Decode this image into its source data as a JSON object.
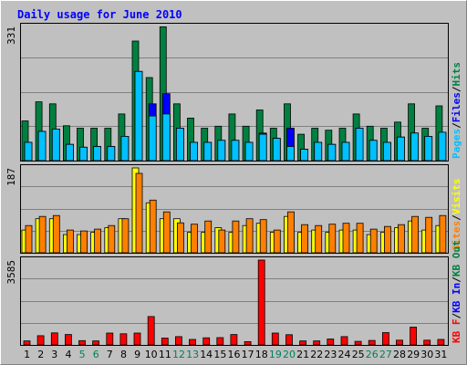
{
  "chart_data": {
    "type": "bar",
    "title": "Daily usage for June 2010",
    "days": [
      "1",
      "2",
      "3",
      "4",
      "5",
      "6",
      "7",
      "8",
      "9",
      "10",
      "11",
      "12",
      "13",
      "14",
      "15",
      "16",
      "17",
      "18",
      "19",
      "20",
      "21",
      "22",
      "23",
      "24",
      "25",
      "26",
      "27",
      "28",
      "29",
      "30",
      "31"
    ],
    "weekend_days": [
      "5",
      "6",
      "12",
      "13",
      "19",
      "20",
      "26",
      "27"
    ],
    "panels": [
      {
        "name": "hits-files-pages",
        "ymax_label": "331",
        "ymax": 331,
        "legend": [
          {
            "text": "Pages",
            "color": "#00c0ff"
          },
          {
            "text": "/",
            "color": "#000000"
          },
          {
            "text": "Files",
            "color": "#0000ff"
          },
          {
            "text": "/",
            "color": "#000000"
          },
          {
            "text": "Hits",
            "color": "#008040"
          }
        ],
        "series": [
          {
            "name": "Hits",
            "color": "#008040",
            "values": [
              98,
              145,
              140,
              86,
              80,
              80,
              80,
              115,
              295,
              205,
              330,
              140,
              105,
              80,
              85,
              115,
              85,
              125,
              80,
              140,
              65,
              80,
              75,
              80,
              115,
              85,
              80,
              95,
              140,
              80,
              135
            ]
          },
          {
            "name": "Files",
            "color": "#0000ff",
            "values": [
              45,
              72,
              78,
              40,
              33,
              35,
              35,
              60,
              220,
              140,
              165,
              80,
              45,
              45,
              50,
              50,
              45,
              68,
              55,
              80,
              28,
              45,
              40,
              45,
              80,
              50,
              45,
              58,
              68,
              60,
              70
            ]
          },
          {
            "name": "Pages",
            "color": "#00c0ff",
            "values": [
              45,
              72,
              78,
              40,
              33,
              35,
              35,
              60,
              220,
              110,
              115,
              80,
              45,
              45,
              50,
              50,
              45,
              65,
              55,
              35,
              28,
              45,
              40,
              45,
              80,
              50,
              45,
              58,
              68,
              60,
              70
            ]
          }
        ]
      },
      {
        "name": "visits-sites",
        "ymax_label": "187",
        "ymax": 187,
        "legend": [
          {
            "text": "Sites",
            "color": "#ff8000"
          },
          {
            "text": "/",
            "color": "#000000"
          },
          {
            "text": "Visits",
            "color": "#ffff00"
          }
        ],
        "series": [
          {
            "name": "Visits",
            "color": "#ffff00",
            "values": [
              50,
              75,
              75,
              40,
              40,
              45,
              55,
              75,
              187,
              110,
              75,
              75,
              45,
              45,
              55,
              45,
              60,
              65,
              45,
              80,
              45,
              50,
              45,
              50,
              50,
              40,
              45,
              55,
              70,
              50,
              60
            ]
          },
          {
            "name": "Sites",
            "color": "#ff8000",
            "values": [
              60,
              80,
              82,
              50,
              48,
              52,
              60,
              75,
              175,
              116,
              90,
              66,
              63,
              70,
              50,
              70,
              75,
              73,
              50,
              90,
              62,
              60,
              63,
              65,
              65,
              52,
              58,
              62,
              80,
              78,
              82
            ]
          }
        ]
      },
      {
        "name": "kbytes",
        "ymax_label": "3585",
        "ymax": 3585,
        "legend": [
          {
            "text": "KB F",
            "color": "#ff0000"
          },
          {
            "text": "/",
            "color": "#000000"
          },
          {
            "text": "KB In",
            "color": "#0000ff"
          },
          {
            "text": "/",
            "color": "#000000"
          },
          {
            "text": "KB Out",
            "color": "#008040"
          }
        ],
        "series": [
          {
            "name": "KBytes",
            "color": "#ff0000",
            "values": [
              170,
              390,
              510,
              440,
              180,
              170,
              500,
              470,
              500,
              1200,
              290,
              350,
              230,
              300,
              310,
              440,
              140,
              3585,
              500,
              430,
              170,
              170,
              250,
              350,
              150,
              190,
              520,
              200,
              750,
              200,
              230
            ]
          }
        ]
      }
    ]
  }
}
